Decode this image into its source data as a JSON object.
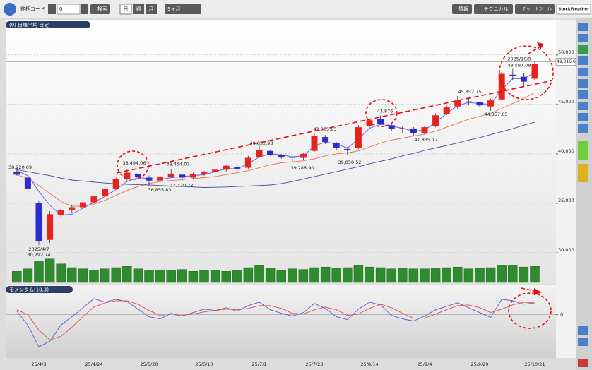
{
  "toolbar": {
    "code_label": "銘柄コード",
    "code_value": "0",
    "search": "検索",
    "periods": [
      "日",
      "週",
      "月"
    ],
    "range": "9ヶ月",
    "info": "情報",
    "technical": "テクニカル",
    "chart_tool": "チャートツール",
    "brand": "StockWeather"
  },
  "chart_data": [
    {
      "type": "candlestick",
      "title": "(0) 日経平均 日足",
      "categories": [
        null,
        null,
        "25/4/3",
        null,
        null,
        null,
        null,
        "25/4/24",
        null,
        null,
        null,
        null,
        "25/5/20",
        null,
        null,
        null,
        null,
        "25/6/10",
        null,
        null,
        null,
        null,
        "25/7/1",
        null,
        null,
        null,
        null,
        "25/7/23",
        null,
        null,
        null,
        null,
        "25/8/14",
        null,
        null,
        null,
        null,
        "25/9/4",
        null,
        null,
        null,
        null,
        "25/9/29",
        null,
        null,
        null,
        null,
        "25/10/21"
      ],
      "open": [
        38200,
        37600,
        35000,
        31300,
        33800,
        34300,
        34600,
        35100,
        35700,
        36500,
        37500,
        38000,
        37600,
        37300,
        37700,
        37900,
        37600,
        38000,
        38200,
        38400,
        38700,
        38600,
        39700,
        40300,
        39900,
        39700,
        39600,
        40300,
        41700,
        41100,
        40500,
        40600,
        42800,
        43500,
        42900,
        42500,
        42500,
        42100,
        42800,
        44000,
        44800,
        45300,
        45200,
        44800,
        45500,
        48000,
        47800,
        47600
      ],
      "high": [
        38400,
        37700,
        35200,
        34200,
        34500,
        34800,
        35200,
        35800,
        36600,
        37600,
        38494.06,
        38200,
        37800,
        37900,
        38454.07,
        38000,
        38100,
        38300,
        38600,
        38900,
        38800,
        39800,
        40852.93,
        40400,
        40000,
        39800,
        40100,
        42065.83,
        41900,
        41200,
        40700,
        42900,
        43600,
        43876,
        43000,
        42800,
        42700,
        42800,
        44100,
        44900,
        45852.75,
        45700,
        45300,
        45600,
        48300,
        48597.08,
        48200,
        49316.6
      ],
      "low": [
        37800,
        36300,
        30792.74,
        31000,
        33500,
        34000,
        34400,
        35000,
        35600,
        36400,
        37300,
        37500,
        36855.83,
        37200,
        37600,
        37320.72,
        37500,
        37800,
        38000,
        38200,
        38300,
        38500,
        39600,
        39800,
        39500,
        39288.9,
        39400,
        40200,
        41000,
        40400,
        39850.52,
        40500,
        42600,
        42900,
        42300,
        42100,
        41835.17,
        42000,
        42700,
        43900,
        44500,
        44900,
        44700,
        44357.65,
        45400,
        47500,
        46800,
        47500
      ],
      "close": [
        37900,
        36500,
        31200,
        33900,
        34300,
        34600,
        35100,
        35700,
        36500,
        37500,
        38100,
        37700,
        37300,
        37700,
        38000,
        37600,
        38000,
        38200,
        38400,
        38800,
        38500,
        39600,
        40400,
        39900,
        39700,
        39600,
        40000,
        41800,
        41200,
        40600,
        40400,
        42700,
        43400,
        43000,
        42500,
        42600,
        42100,
        42700,
        43900,
        44700,
        45400,
        45200,
        44900,
        45400,
        48100,
        47900,
        47300,
        49100
      ],
      "up_color": "#e8231c",
      "down_color": "#2b2bd0",
      "ylim": [
        27000,
        52700
      ],
      "yticks": [
        {
          "value": 30000,
          "label": "30,000"
        },
        {
          "value": 35000,
          "label": "35,000"
        },
        {
          "value": 40000,
          "label": "40,000"
        },
        {
          "value": 45000,
          "label": "45,000"
        },
        {
          "value": 50000,
          "label": "50,000"
        }
      ],
      "grid": true,
      "current_price": {
        "value": 49316.6,
        "label": "49,316.6"
      },
      "series": [
        {
          "color": "#6a5cf0",
          "values": [
            38300,
            37800,
            36200,
            34800,
            33800,
            33900,
            34500,
            35100,
            35700,
            36400,
            37200,
            37600,
            37500,
            37400,
            37600,
            37700,
            37800,
            37900,
            38200,
            38500,
            38500,
            39000,
            39700,
            40000,
            39900,
            39700,
            39800,
            40800,
            41200,
            41000,
            40600,
            41500,
            42600,
            43000,
            42800,
            42600,
            42300,
            42400,
            43200,
            44100,
            44900,
            45200,
            45100,
            45000,
            46500,
            47600,
            47600,
            48200
          ]
        },
        {
          "color": "#e8704a",
          "values": [
            37900,
            37500,
            36800,
            36000,
            35200,
            34700,
            34700,
            34900,
            35300,
            35800,
            36300,
            36700,
            37000,
            37200,
            37300,
            37400,
            37500,
            37600,
            37700,
            37900,
            38100,
            38300,
            38600,
            38900,
            39100,
            39200,
            39300,
            39500,
            39800,
            40000,
            40100,
            40300,
            40700,
            41100,
            41400,
            41600,
            41800,
            42000,
            42300,
            42700,
            43100,
            43500,
            43800,
            44100,
            44600,
            45100,
            45600,
            46200
          ]
        },
        {
          "color": "#4b4b9e",
          "values": [
            38400,
            38200,
            38000,
            37800,
            37550,
            37350,
            37250,
            37150,
            37050,
            36980,
            36920,
            36880,
            36850,
            36800,
            36750,
            36700,
            36650,
            36600,
            36620,
            36650,
            36700,
            36750,
            36800,
            36850,
            37000,
            37200,
            37450,
            37700,
            37950,
            38200,
            38450,
            38700,
            39000,
            39250,
            39500,
            39800,
            40050,
            40350,
            40600,
            40850,
            41100,
            41400,
            41650,
            41950,
            42250,
            42550,
            42900,
            43200
          ]
        }
      ],
      "volume": {
        "color": "#2e8b2e",
        "ylim": [
          0,
          40
        ],
        "values": [
          18,
          22,
          35,
          38,
          30,
          24,
          22,
          20,
          22,
          24,
          26,
          22,
          20,
          19,
          20,
          21,
          18,
          19,
          20,
          18,
          19,
          24,
          27,
          23,
          20,
          22,
          21,
          24,
          25,
          23,
          24,
          27,
          25,
          24,
          22,
          23,
          22,
          22,
          23,
          24,
          25,
          22,
          23,
          24,
          28,
          27,
          25,
          26
        ]
      },
      "annotations": [
        {
          "label": "38,220.69",
          "value": 38220.69
        },
        {
          "date": "2025/4/7",
          "label": "30,792.74",
          "value": 30792.74
        },
        {
          "label": "38,494.06",
          "value": 38494.06
        },
        {
          "label": "36,855.83",
          "value": 36855.83
        },
        {
          "label": "38,454.07",
          "value": 38454.07
        },
        {
          "label": "37,320.72",
          "value": 37320.72
        },
        {
          "label": "40,852.93",
          "value": 40852.93
        },
        {
          "label": "39,288.90",
          "value": 39288.9
        },
        {
          "label": "42,065.83",
          "value": 42065.83
        },
        {
          "label": "39,850.52",
          "value": 39850.52
        },
        {
          "label": "43,876",
          "value": 43876
        },
        {
          "label": "41,835.17",
          "value": 41835.17
        },
        {
          "label": "45,852.75",
          "value": 45852.75
        },
        {
          "label": "44,357.65",
          "value": 44357.65
        },
        {
          "date": "2025/10/9",
          "label": "48,597.08",
          "value": 48597.08
        }
      ]
    },
    {
      "type": "line",
      "title": "モメンタム(10,3)",
      "ylim": [
        -6000,
        3000
      ],
      "yticks": [
        0
      ],
      "series": [
        {
          "color": "#5a5ac8",
          "values": [
            500,
            -1500,
            -4600,
            -3800,
            -1500,
            -300,
            1000,
            2300,
            1800,
            2200,
            1900,
            800,
            -300,
            -600,
            200,
            -200,
            300,
            800,
            600,
            1000,
            500,
            1300,
            1800,
            700,
            200,
            -200,
            300,
            1600,
            900,
            -300,
            -700,
            800,
            1800,
            1400,
            -100,
            -600,
            -900,
            -200,
            700,
            1200,
            1700,
            1000,
            300,
            -400,
            2200,
            2000,
            1500,
            1700
          ]
        },
        {
          "color": "#e05050",
          "values": [
            700,
            0,
            -2200,
            -3600,
            -3100,
            -1800,
            -300,
            1100,
            1700,
            2000,
            2000,
            1500,
            600,
            -100,
            -200,
            -100,
            100,
            400,
            600,
            800,
            700,
            900,
            1300,
            1300,
            900,
            200,
            100,
            700,
            1100,
            700,
            -100,
            100,
            900,
            1500,
            1000,
            200,
            -500,
            -500,
            100,
            700,
            1300,
            1400,
            1000,
            300,
            800,
            1400,
            1800,
            1700
          ]
        }
      ]
    }
  ]
}
